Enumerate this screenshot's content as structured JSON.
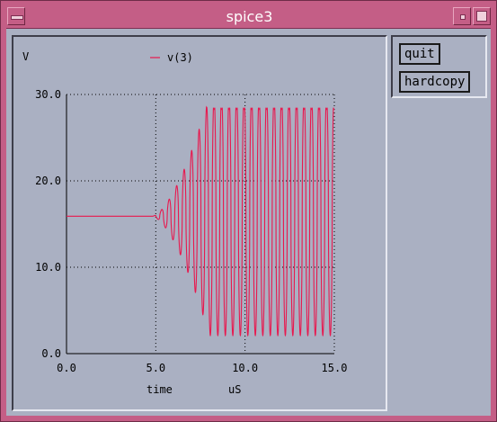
{
  "window": {
    "title": "spice3"
  },
  "buttons": {
    "quit": "quit",
    "hardcopy": "hardcopy"
  },
  "colors": {
    "trace": "#e8184e",
    "titlebar": "#c45e86",
    "background": "#aab0c2"
  },
  "chart_data": {
    "type": "line",
    "ylabel": "V",
    "xlabel": "time",
    "xunit": "uS",
    "xlim": [
      0,
      15
    ],
    "ylim": [
      0,
      30
    ],
    "xticks": [
      "0.0",
      "5.0",
      "10.0",
      "15.0"
    ],
    "yticks": [
      "0.0",
      "10.0",
      "20.0",
      "30.0"
    ],
    "grid": "dotted",
    "legend_position": "top-center",
    "series": [
      {
        "name": "v(3)",
        "description_values": {
          "steady_value_before_5us": 15.9,
          "oscillation_start_us": 4.8,
          "oscillation_period_us": 0.42,
          "max_envelope": [
            1.0,
            28.5
          ],
          "end_time_us": 15.0
        }
      }
    ]
  }
}
